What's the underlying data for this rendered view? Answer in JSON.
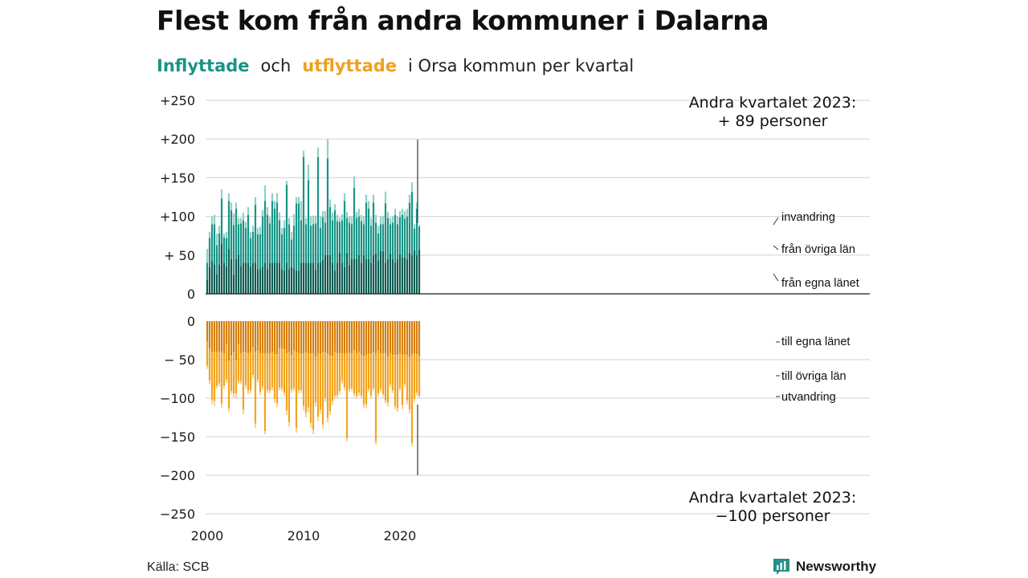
{
  "title": "Flest kom från andra kommuner i Dalarna",
  "subtitle": {
    "inflow_word": "Inflyttade",
    "and_word": "och",
    "outflow_word": "utflyttade",
    "rest": "i Orsa  kommun  per  kvartal"
  },
  "source": "Källa: SCB",
  "brand": {
    "name": "Newsworthy",
    "icon": "newsworthy-logo-icon"
  },
  "colors": {
    "in_own": "#0e5c52",
    "in_other": "#1a9486",
    "in_abroad": "#8fd2c6",
    "out_own": "#d77f0a",
    "out_other": "#f2a421",
    "out_abroad": "#f7d69c",
    "accent_in": "#1a9486",
    "accent_out": "#f0a020",
    "grid": "#d9d9d9",
    "axis": "#1a1a1a"
  },
  "chart_data": {
    "type": "bar",
    "stacked": true,
    "x_ticks": [
      "2000",
      "2010",
      "2020"
    ],
    "y_ticks_top": [
      "+250",
      "+200",
      "+150",
      "+100",
      "+ 50",
      "0"
    ],
    "y_ticks_bottom": [
      "0",
      "− 50",
      "−100",
      "−150",
      "−200",
      "−250"
    ],
    "ylim_top": [
      0,
      250
    ],
    "ylim_bottom": [
      -250,
      0
    ],
    "grid": true,
    "start_year": 2000,
    "start_quarter": 1,
    "latest_in_label": "Andra kvartalet 2023:\n+ 89 personer",
    "latest_out_label": "Andra kvartalet 2023:\n−100 personer",
    "series_labels": {
      "invandring": "invandring",
      "fran_ovriga_lan": "från övriga län",
      "fran_egna_lanet": "från egna länet",
      "till_egna_lanet": "till egna länet",
      "till_ovriga_lan": "till övriga län",
      "utvandring": "utvandring"
    },
    "inflow_total": [
      58,
      80,
      100,
      102,
      78,
      88,
      135,
      78,
      80,
      130,
      118,
      104,
      118,
      98,
      98,
      105,
      93,
      112,
      80,
      88,
      125,
      85,
      87,
      108,
      140,
      112,
      99,
      130,
      120,
      130,
      105,
      85,
      95,
      146,
      98,
      80,
      103,
      125,
      125,
      120,
      185,
      98,
      167,
      100,
      101,
      101,
      189,
      100,
      107,
      107,
      200,
      122,
      105,
      116,
      102,
      98,
      103,
      130,
      106,
      100,
      100,
      152,
      106,
      110,
      102,
      100,
      128,
      120,
      98,
      128,
      102,
      88,
      100,
      100,
      132,
      106,
      98,
      100,
      110,
      100,
      107,
      110,
      107,
      110,
      128,
      144,
      90,
      118,
      89
    ],
    "inflow_abroad": [
      18,
      8,
      10,
      12,
      15,
      10,
      12,
      5,
      8,
      10,
      10,
      15,
      8,
      8,
      7,
      10,
      8,
      10,
      8,
      8,
      10,
      8,
      10,
      8,
      20,
      10,
      8,
      10,
      10,
      12,
      10,
      8,
      10,
      5,
      8,
      10,
      15,
      8,
      8,
      25,
      8,
      8,
      20,
      12,
      11,
      10,
      12,
      15,
      8,
      15,
      25,
      10,
      10,
      8,
      8,
      5,
      8,
      10,
      8,
      8,
      10,
      15,
      8,
      10,
      8,
      10,
      10,
      10,
      10,
      10,
      10,
      10,
      10,
      10,
      15,
      8,
      8,
      8,
      8,
      10,
      8,
      8,
      10,
      10,
      10,
      12,
      6,
      8,
      2
    ],
    "inflow_other": [
      22,
      37,
      48,
      52,
      38,
      40,
      58,
      33,
      37,
      62,
      63,
      64,
      65,
      40,
      55,
      55,
      45,
      62,
      37,
      40,
      75,
      45,
      45,
      65,
      80,
      70,
      51,
      80,
      70,
      78,
      55,
      45,
      55,
      101,
      58,
      35,
      55,
      87,
      87,
      55,
      137,
      50,
      107,
      48,
      50,
      60,
      137,
      45,
      55,
      42,
      125,
      62,
      55,
      78,
      54,
      40,
      55,
      85,
      45,
      55,
      45,
      92,
      53,
      50,
      54,
      40,
      73,
      65,
      48,
      68,
      40,
      35,
      35,
      35,
      77,
      53,
      38,
      47,
      62,
      45,
      48,
      55,
      50,
      55,
      65,
      82,
      28,
      60,
      30
    ],
    "inflow_own": [
      18,
      35,
      42,
      38,
      25,
      38,
      65,
      40,
      35,
      58,
      45,
      25,
      45,
      50,
      36,
      40,
      40,
      40,
      35,
      40,
      40,
      32,
      32,
      35,
      40,
      32,
      40,
      40,
      40,
      40,
      40,
      32,
      30,
      40,
      32,
      35,
      33,
      30,
      30,
      40,
      40,
      40,
      40,
      40,
      40,
      31,
      40,
      40,
      44,
      50,
      50,
      50,
      40,
      30,
      40,
      53,
      40,
      35,
      53,
      37,
      45,
      45,
      45,
      50,
      40,
      50,
      45,
      45,
      40,
      50,
      52,
      43,
      55,
      55,
      40,
      45,
      52,
      45,
      40,
      45,
      51,
      47,
      47,
      45,
      53,
      50,
      56,
      50,
      57
    ],
    "outflow_total": [
      62,
      82,
      108,
      110,
      88,
      85,
      113,
      88,
      80,
      118,
      95,
      99,
      99,
      82,
      82,
      121,
      87,
      95,
      94,
      74,
      139,
      80,
      96,
      89,
      147,
      93,
      94,
      90,
      106,
      112,
      90,
      91,
      97,
      122,
      137,
      93,
      91,
      145,
      94,
      93,
      116,
      125,
      118,
      138,
      147,
      111,
      130,
      120,
      140,
      105,
      132,
      122,
      109,
      101,
      100,
      95,
      81,
      90,
      156,
      92,
      91,
      98,
      101,
      97,
      101,
      113,
      113,
      92,
      101,
      91,
      160,
      98,
      92,
      99,
      107,
      111,
      86,
      94,
      115,
      118,
      91,
      114,
      86,
      108,
      120,
      163,
      105,
      97,
      100
    ],
    "outflow_abroad": [
      4,
      5,
      6,
      6,
      4,
      4,
      6,
      4,
      4,
      5,
      4,
      5,
      5,
      4,
      4,
      6,
      4,
      5,
      4,
      4,
      6,
      4,
      4,
      4,
      4,
      4,
      4,
      4,
      5,
      5,
      4,
      4,
      4,
      6,
      6,
      4,
      4,
      6,
      4,
      4,
      6,
      6,
      6,
      6,
      6,
      5,
      6,
      5,
      6,
      5,
      6,
      5,
      5,
      4,
      4,
      4,
      4,
      4,
      4,
      4,
      4,
      4,
      4,
      4,
      4,
      5,
      5,
      4,
      4,
      4,
      4,
      4,
      4,
      4,
      4,
      5,
      4,
      4,
      5,
      5,
      4,
      5,
      4,
      5,
      5,
      5,
      4,
      4,
      3
    ],
    "outflow_other": [
      32,
      42,
      62,
      64,
      44,
      41,
      67,
      42,
      46,
      62,
      46,
      54,
      44,
      48,
      36,
      75,
      43,
      48,
      50,
      36,
      93,
      38,
      50,
      43,
      101,
      47,
      48,
      46,
      58,
      64,
      51,
      51,
      57,
      74,
      91,
      45,
      49,
      99,
      48,
      47,
      68,
      79,
      70,
      90,
      99,
      60,
      82,
      72,
      94,
      59,
      84,
      72,
      59,
      57,
      54,
      49,
      35,
      44,
      110,
      47,
      45,
      56,
      55,
      53,
      54,
      63,
      64,
      46,
      55,
      47,
      114,
      56,
      46,
      53,
      61,
      60,
      40,
      46,
      66,
      69,
      45,
      65,
      39,
      59,
      68,
      115,
      59,
      50,
      52
    ],
    "outflow_own": [
      26,
      35,
      40,
      40,
      40,
      40,
      40,
      42,
      30,
      51,
      45,
      40,
      50,
      30,
      42,
      40,
      40,
      42,
      40,
      34,
      40,
      38,
      42,
      42,
      42,
      42,
      42,
      40,
      43,
      43,
      35,
      36,
      36,
      42,
      40,
      44,
      38,
      40,
      42,
      42,
      42,
      40,
      42,
      42,
      42,
      46,
      42,
      43,
      40,
      41,
      42,
      45,
      45,
      40,
      42,
      42,
      42,
      42,
      42,
      41,
      42,
      38,
      42,
      40,
      43,
      45,
      44,
      42,
      42,
      40,
      42,
      38,
      42,
      42,
      42,
      46,
      42,
      44,
      44,
      44,
      42,
      44,
      43,
      44,
      47,
      43,
      42,
      43,
      45
    ]
  }
}
